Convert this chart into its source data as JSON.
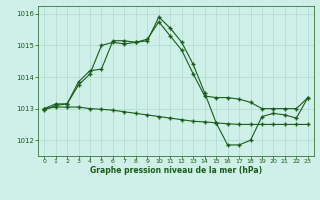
{
  "title": "Graphe pression niveau de la mer (hPa)",
  "background_color": "#cff0e8",
  "grid_color": "#aaddcc",
  "line_color": "#1a5c1a",
  "xlim": [
    -0.5,
    23.5
  ],
  "ylim": [
    1011.5,
    1016.25
  ],
  "yticks": [
    1012,
    1013,
    1014,
    1015,
    1016
  ],
  "xticks": [
    0,
    1,
    2,
    3,
    4,
    5,
    6,
    7,
    8,
    9,
    10,
    11,
    12,
    13,
    14,
    15,
    16,
    17,
    18,
    19,
    20,
    21,
    22,
    23
  ],
  "series1_x": [
    0,
    1,
    2,
    3,
    4,
    5,
    6,
    7,
    8,
    9,
    10,
    11,
    12,
    13,
    14,
    15,
    16,
    17,
    18,
    19,
    20,
    21,
    22,
    23
  ],
  "series1_y": [
    1012.95,
    1013.1,
    1013.15,
    1013.75,
    1014.1,
    1015.0,
    1015.1,
    1015.05,
    1015.1,
    1015.15,
    1015.9,
    1015.55,
    1015.1,
    1014.4,
    1013.5,
    1012.55,
    1011.85,
    1011.85,
    1012.0,
    1012.75,
    1012.85,
    1012.8,
    1012.7,
    1013.35
  ],
  "series2_x": [
    0,
    1,
    2,
    3,
    4,
    5,
    6,
    7,
    8,
    9,
    10,
    11,
    12,
    13,
    14,
    15,
    16,
    17,
    18,
    19,
    20,
    21,
    22,
    23
  ],
  "series2_y": [
    1013.0,
    1013.15,
    1013.15,
    1013.85,
    1014.2,
    1014.25,
    1015.15,
    1015.15,
    1015.1,
    1015.2,
    1015.75,
    1015.3,
    1014.85,
    1014.1,
    1013.4,
    1013.35,
    1013.35,
    1013.3,
    1013.2,
    1013.0,
    1013.0,
    1013.0,
    1013.0,
    1013.35
  ],
  "series3_x": [
    0,
    1,
    2,
    3,
    4,
    5,
    6,
    7,
    8,
    9,
    10,
    11,
    12,
    13,
    14,
    15,
    16,
    17,
    18,
    19,
    20,
    21,
    22,
    23
  ],
  "series3_y": [
    1013.0,
    1013.05,
    1013.05,
    1013.05,
    1013.0,
    1012.98,
    1012.95,
    1012.9,
    1012.85,
    1012.8,
    1012.75,
    1012.7,
    1012.65,
    1012.6,
    1012.58,
    1012.55,
    1012.52,
    1012.5,
    1012.5,
    1012.5,
    1012.5,
    1012.5,
    1012.5,
    1012.5
  ]
}
